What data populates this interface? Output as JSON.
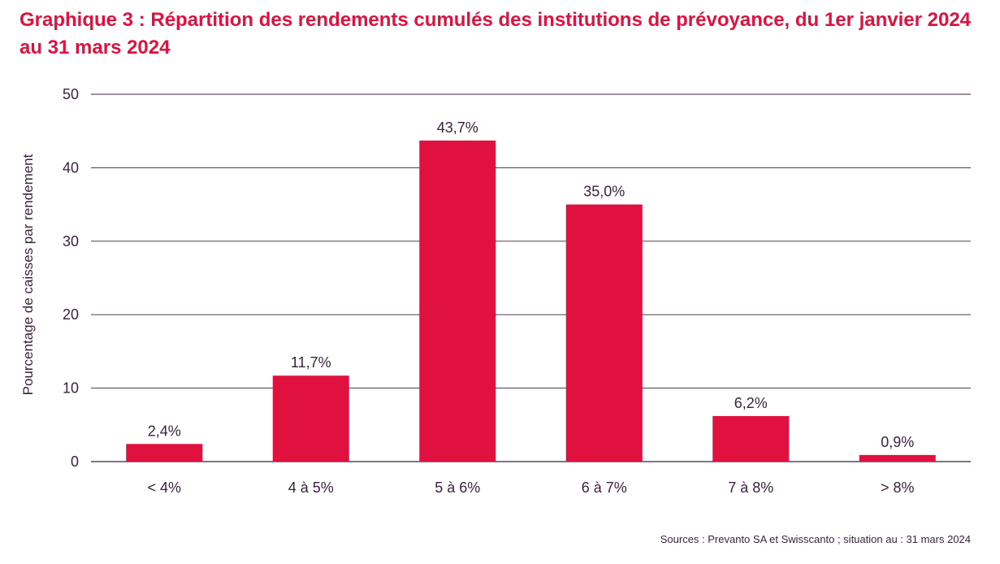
{
  "chart_data": {
    "type": "bar",
    "title": "Graphique 3 : Répartition des rendements cumulés des institutions de prévoyance, du 1er janvier 2024 au 31 mars 2024",
    "xlabel": "",
    "ylabel": "Pourcentage de caisses par rendement",
    "categories": [
      "< 4%",
      "4 à 5%",
      "5 à 6%",
      "6 à 7%",
      "7 à 8%",
      "> 8%"
    ],
    "values": [
      2.4,
      11.7,
      43.7,
      35.0,
      6.2,
      0.9
    ],
    "value_labels": [
      "2,4%",
      "11,7%",
      "43,7%",
      "35,0%",
      "6,2%",
      "0,9%"
    ],
    "ylim": [
      0,
      50
    ],
    "yticks": [
      0,
      10,
      20,
      30,
      40,
      50
    ],
    "grid": true,
    "legend": "none",
    "bar_color": "#e0103f",
    "text_color": "#3a1f3d",
    "source": "Sources : Prevanto SA et Swisscanto ; situation au : 31 mars 2024"
  }
}
